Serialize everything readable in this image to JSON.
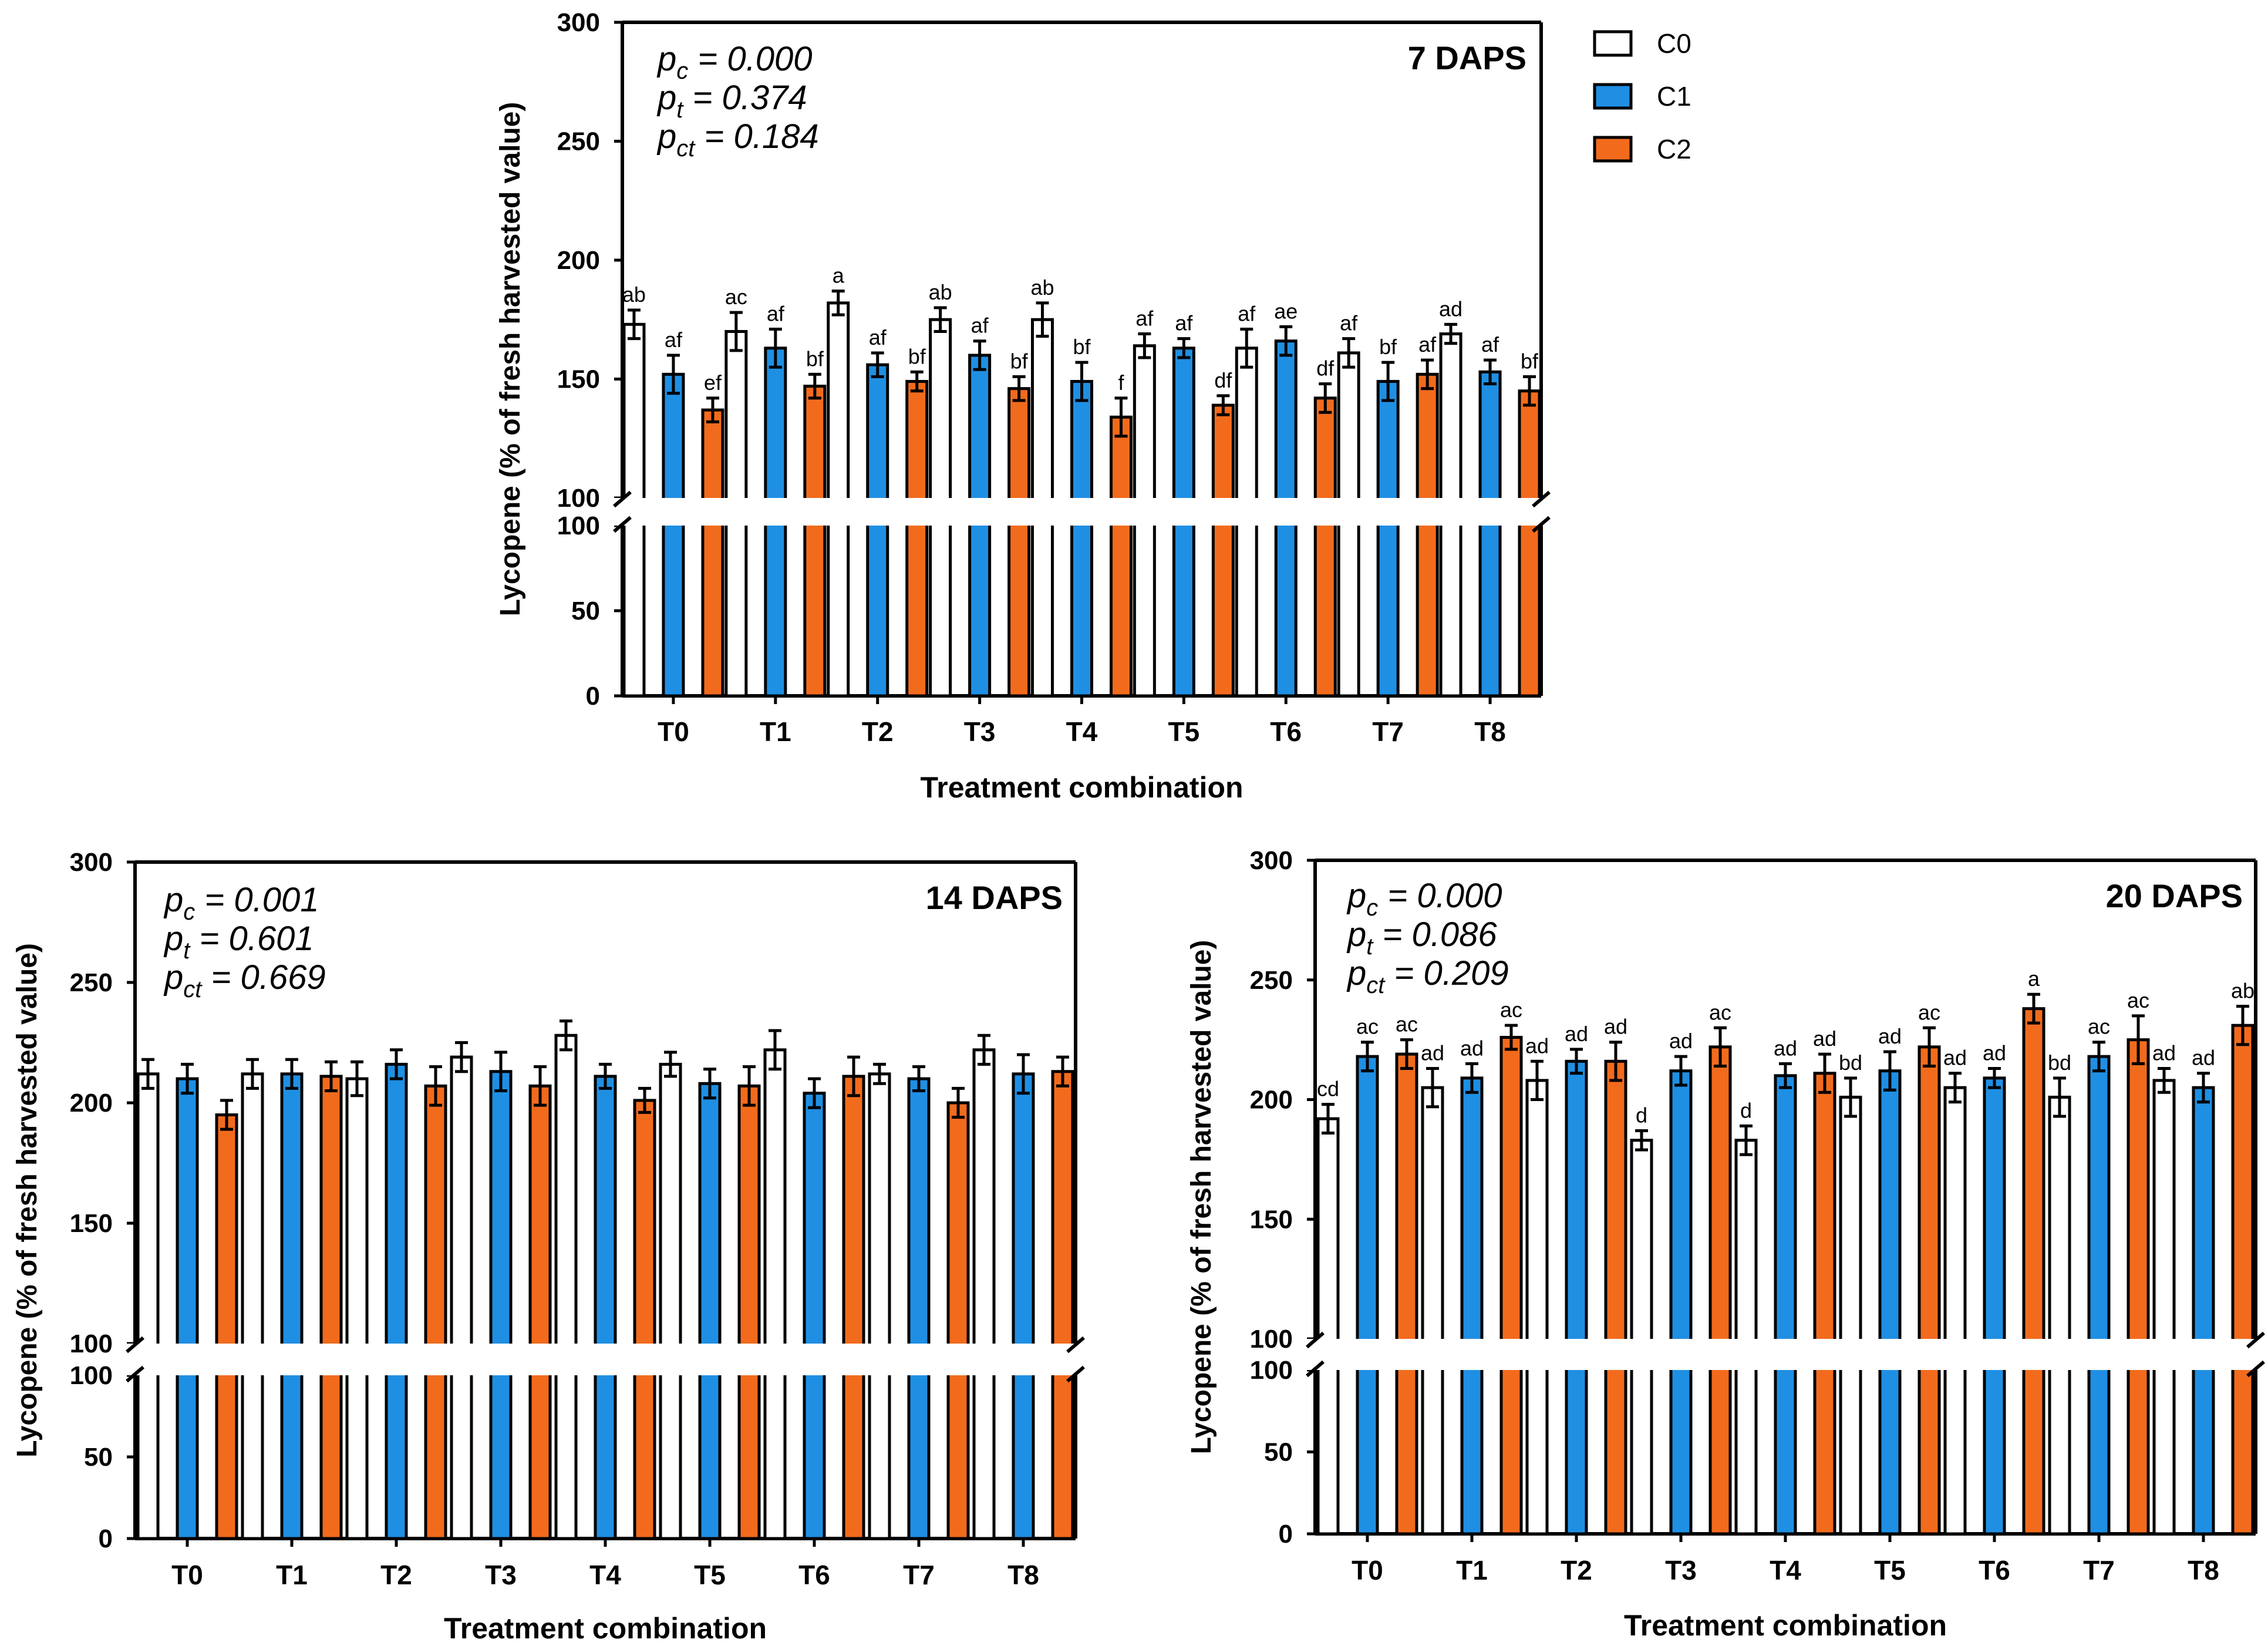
{
  "legend": {
    "entries": [
      {
        "key": "C0",
        "label": "C0",
        "color": "#ffffff"
      },
      {
        "key": "C1",
        "label": "C1",
        "color": "#1f8fe3"
      },
      {
        "key": "C2",
        "label": "C2",
        "color": "#f26b1d"
      }
    ]
  },
  "chart_data": [
    {
      "type": "bar",
      "title": "7 DAPS",
      "xlabel": "Treatment combination",
      "ylabel": "Lycopene (% of fresh harvested value)",
      "ylim": [
        0,
        300
      ],
      "axis_break": [
        100,
        100
      ],
      "yticks_lower": [
        "0",
        "50",
        "100"
      ],
      "yticks_upper": [
        "100",
        "150",
        "200",
        "250",
        "300"
      ],
      "categories": [
        "T0",
        "T1",
        "T2",
        "T3",
        "T4",
        "T5",
        "T6",
        "T7",
        "T8"
      ],
      "stats": [
        {
          "base": "p",
          "sub": "c",
          "value": " = 0.000"
        },
        {
          "base": "p",
          "sub": "t",
          "value": " = 0.374"
        },
        {
          "base": "p",
          "sub": "ct",
          "value": " = 0.184"
        }
      ],
      "series": [
        {
          "name": "C0",
          "values": [
            173,
            170,
            182,
            175,
            175,
            164,
            163,
            161,
            169
          ],
          "errors": [
            6,
            8,
            5,
            5,
            7,
            5,
            8,
            6,
            4
          ],
          "letters": [
            "ab",
            "ac",
            "a",
            "ab",
            "ab",
            "af",
            "af",
            "af",
            "ad"
          ]
        },
        {
          "name": "C1",
          "values": [
            152,
            163,
            156,
            160,
            149,
            163,
            166,
            149,
            153
          ],
          "errors": [
            8,
            8,
            5,
            6,
            8,
            4,
            6,
            8,
            5
          ],
          "letters": [
            "af",
            "af",
            "af",
            "af",
            "bf",
            "af",
            "ae",
            "bf",
            "af"
          ]
        },
        {
          "name": "C2",
          "values": [
            137,
            147,
            149,
            146,
            134,
            139,
            142,
            152,
            145
          ],
          "errors": [
            5,
            5,
            4,
            5,
            8,
            4,
            6,
            6,
            6
          ],
          "letters": [
            "ef",
            "bf",
            "bf",
            "bf",
            "f",
            "df",
            "df",
            "af",
            "bf"
          ]
        }
      ]
    },
    {
      "type": "bar",
      "title": "14 DAPS",
      "xlabel": "Treatment combination",
      "ylabel": "Lycopene (% of fresh harvested value)",
      "ylim": [
        0,
        300
      ],
      "axis_break": [
        100,
        100
      ],
      "yticks_lower": [
        "0",
        "50",
        "100"
      ],
      "yticks_upper": [
        "100",
        "150",
        "200",
        "250",
        "300"
      ],
      "categories": [
        "T0",
        "T1",
        "T2",
        "T3",
        "T4",
        "T5",
        "T6",
        "T7",
        "T8"
      ],
      "stats": [
        {
          "base": "p",
          "sub": "c",
          "value": " = 0.001"
        },
        {
          "base": "p",
          "sub": "t",
          "value": " = 0.601"
        },
        {
          "base": "p",
          "sub": "ct",
          "value": " = 0.669"
        }
      ],
      "series": [
        {
          "name": "C0",
          "values": [
            212,
            212,
            210,
            219,
            228,
            216,
            222,
            212,
            222
          ],
          "errors": [
            6,
            6,
            7,
            6,
            6,
            5,
            8,
            4,
            6
          ],
          "letters": [
            "",
            "",
            "",
            "",
            "",
            "",
            "",
            "",
            ""
          ]
        },
        {
          "name": "C1",
          "values": [
            210,
            212,
            216,
            213,
            211,
            208,
            204,
            210,
            212
          ],
          "errors": [
            6,
            6,
            6,
            8,
            5,
            6,
            6,
            5,
            8
          ],
          "letters": [
            "",
            "",
            "",
            "",
            "",
            "",
            "",
            "",
            ""
          ]
        },
        {
          "name": "C2",
          "values": [
            195,
            211,
            207,
            207,
            201,
            207,
            211,
            200,
            213
          ],
          "errors": [
            6,
            6,
            8,
            8,
            5,
            8,
            8,
            6,
            6
          ],
          "letters": [
            "",
            "",
            "",
            "",
            "",
            "",
            "",
            "",
            ""
          ]
        }
      ]
    },
    {
      "type": "bar",
      "title": "20 DAPS",
      "xlabel": "Treatment combination",
      "ylabel": "Lycopene (% of fresh harvested value)",
      "ylim": [
        0,
        300
      ],
      "axis_break": [
        100,
        100
      ],
      "yticks_lower": [
        "0",
        "50",
        "100"
      ],
      "yticks_upper": [
        "100",
        "150",
        "200",
        "250",
        "300"
      ],
      "categories": [
        "T0",
        "T1",
        "T2",
        "T3",
        "T4",
        "T5",
        "T6",
        "T7",
        "T8"
      ],
      "stats": [
        {
          "base": "p",
          "sub": "c",
          "value": " = 0.000"
        },
        {
          "base": "p",
          "sub": "t",
          "value": " = 0.086"
        },
        {
          "base": "p",
          "sub": "ct",
          "value": " = 0.209"
        }
      ],
      "series": [
        {
          "name": "C0",
          "values": [
            192,
            205,
            208,
            183,
            183,
            201,
            205,
            201,
            208
          ],
          "errors": [
            6,
            8,
            8,
            4,
            6,
            8,
            6,
            8,
            5
          ],
          "letters": [
            "cd",
            "ad",
            "ad",
            "d",
            "d",
            "bd",
            "ad",
            "bd",
            "ad"
          ]
        },
        {
          "name": "C1",
          "values": [
            218,
            209,
            216,
            212,
            210,
            212,
            209,
            218,
            205
          ],
          "errors": [
            6,
            6,
            5,
            6,
            5,
            8,
            4,
            6,
            6
          ],
          "letters": [
            "ac",
            "ad",
            "ad",
            "ad",
            "ad",
            "ad",
            "ad",
            "ac",
            "ad"
          ]
        },
        {
          "name": "C2",
          "values": [
            219,
            226,
            216,
            222,
            211,
            222,
            238,
            225,
            231
          ],
          "errors": [
            6,
            5,
            8,
            8,
            8,
            8,
            6,
            10,
            8
          ],
          "letters": [
            "ac",
            "ac",
            "ad",
            "ac",
            "ad",
            "ac",
            "a",
            "ac",
            "ab"
          ]
        }
      ]
    }
  ]
}
